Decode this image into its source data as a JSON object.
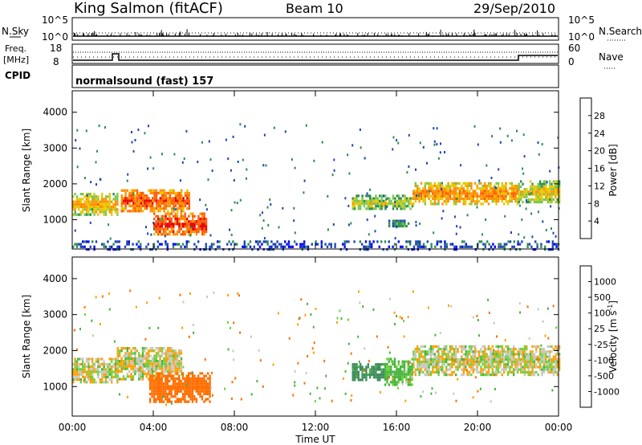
{
  "header": {
    "station": "King Salmon (fitACF)",
    "beam": "Beam 10",
    "date": "29/Sep/2010"
  },
  "top_panels": {
    "nsky_label": "N.Sky",
    "nsky_ticks": [
      "10^5",
      "10^0"
    ],
    "nsearch_label": "N.Search",
    "nsearch_ticks": [
      "10^5",
      "10^0"
    ],
    "freq_label_1": "Freq.",
    "freq_label_2": "[MHz]",
    "freq_ticks": [
      "18",
      "8"
    ],
    "nave_label": "Nave",
    "nave_ticks": [
      "60",
      "0"
    ],
    "cpid_label": "CPID",
    "cpid_text": "normalsound (fast) 157"
  },
  "axes": {
    "x_ticks": [
      "00:00",
      "04:00",
      "08:00",
      "12:00",
      "16:00",
      "20:00",
      "00:00"
    ],
    "x_label": "Time UT",
    "y_ticks": [
      "1000",
      "2000",
      "3000",
      "4000"
    ],
    "y_label": "Slant Range [km]"
  },
  "colorbars": {
    "power_label": "Power [dB]",
    "power_ticks": [
      "28",
      "24",
      "20",
      "16",
      "12",
      "8",
      "4"
    ],
    "power_colors": [
      "#e60000",
      "#ff5a00",
      "#ff9000",
      "#e6c800",
      "#78c850",
      "#2d8c50",
      "#1e46b4",
      "#0000ff"
    ],
    "velocity_label": "Velocity [m s",
    "velocity_sup": "-1",
    "velocity_label_end": "]",
    "velocity_ticks": [
      "1000",
      "500",
      "100",
      "25",
      "-25",
      "-100",
      "-500",
      "-1000"
    ],
    "velocity_colors": [
      "#2f50c8",
      "#3c8c5a",
      "#48b43c",
      "#6ed23c",
      "#c8c8c0",
      "#ffa000",
      "#ff6e00",
      "#ff3c00",
      "#e60000"
    ]
  },
  "chart_data": [
    {
      "type": "heatmap",
      "title": "Power [dB]",
      "xlabel": "Time UT",
      "ylabel": "Slant Range [km]",
      "xlim": [
        0,
        24
      ],
      "ylim": [
        180,
        4600
      ],
      "color_range": [
        0,
        32
      ],
      "regions": [
        {
          "t0": 0.0,
          "t1": 2.2,
          "r0": 1150,
          "r1": 1750,
          "value": 18
        },
        {
          "t0": 2.4,
          "t1": 5.8,
          "r0": 1250,
          "r1": 1850,
          "value": 24
        },
        {
          "t0": 4.0,
          "t1": 6.6,
          "r0": 600,
          "r1": 1200,
          "value": 26
        },
        {
          "t0": 13.8,
          "t1": 16.8,
          "r0": 1300,
          "r1": 1700,
          "value": 14
        },
        {
          "t0": 15.6,
          "t1": 16.6,
          "r0": 800,
          "r1": 1000,
          "value": 10
        },
        {
          "t0": 16.8,
          "t1": 22.0,
          "r0": 1450,
          "r1": 2050,
          "value": 20
        },
        {
          "t0": 22.0,
          "t1": 24.0,
          "r0": 1500,
          "r1": 2100,
          "value": 16
        },
        {
          "t0": 0.0,
          "t1": 24.0,
          "r0": 180,
          "r1": 420,
          "value": 6
        }
      ]
    },
    {
      "type": "heatmap",
      "title": "Velocity [m s-1]",
      "xlabel": "Time UT",
      "ylabel": "Slant Range [km]",
      "xlim": [
        0,
        24
      ],
      "ylim": [
        180,
        4600
      ],
      "color_range": [
        -1200,
        1200
      ],
      "regions": [
        {
          "t0": 0.0,
          "t1": 2.2,
          "r0": 1100,
          "r1": 1800,
          "value": 0
        },
        {
          "t0": 2.2,
          "t1": 5.4,
          "r0": 1200,
          "r1": 2100,
          "value": 0
        },
        {
          "t0": 3.8,
          "t1": 6.8,
          "r0": 600,
          "r1": 1400,
          "value": -200
        },
        {
          "t0": 13.8,
          "t1": 15.4,
          "r0": 1150,
          "r1": 1650,
          "value": 300
        },
        {
          "t0": 15.4,
          "t1": 16.8,
          "r0": 1050,
          "r1": 1800,
          "value": 90
        },
        {
          "t0": 16.8,
          "t1": 22.0,
          "r0": 1350,
          "r1": 2150,
          "value": 0
        },
        {
          "t0": 22.0,
          "t1": 24.0,
          "r0": 1350,
          "r1": 2150,
          "value": 0
        }
      ]
    }
  ]
}
